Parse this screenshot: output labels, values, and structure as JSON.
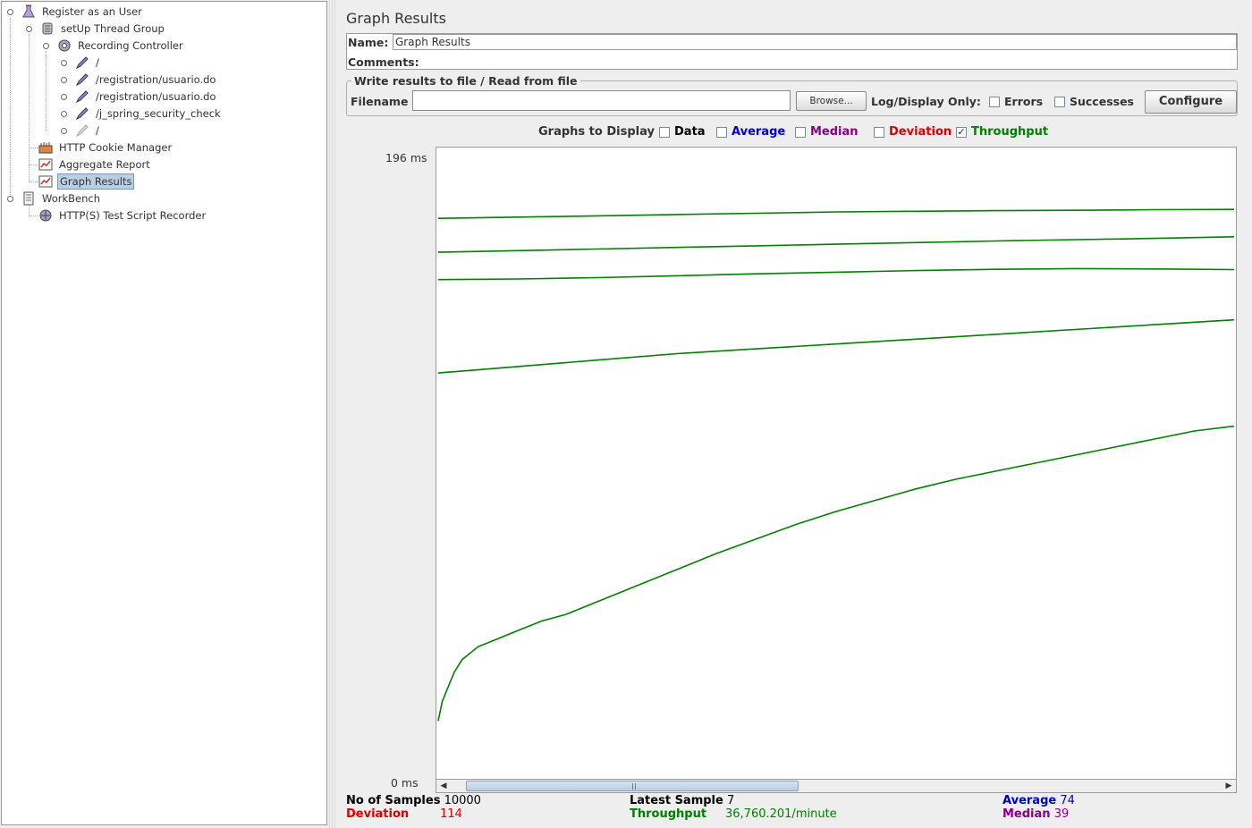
{
  "tree": {
    "nodes": [
      {
        "label": "Register as an User",
        "icon": "test-plan-icon"
      },
      {
        "label": "setUp Thread Group",
        "icon": "thread-group-icon"
      },
      {
        "label": "Recording Controller",
        "icon": "controller-icon"
      },
      {
        "label": "/",
        "icon": "sampler-icon"
      },
      {
        "label": "/registration/usuario.do",
        "icon": "sampler-icon"
      },
      {
        "label": "/registration/usuario.do",
        "icon": "sampler-icon"
      },
      {
        "label": "/j_spring_security_check",
        "icon": "sampler-icon"
      },
      {
        "label": "/",
        "icon": "sampler-disabled-icon"
      },
      {
        "label": "HTTP Cookie Manager",
        "icon": "cookie-manager-icon"
      },
      {
        "label": "Aggregate Report",
        "icon": "listener-icon"
      },
      {
        "label": "Graph Results",
        "icon": "listener-icon"
      },
      {
        "label": "WorkBench",
        "icon": "workbench-icon"
      },
      {
        "label": "HTTP(S) Test Script Recorder",
        "icon": "recorder-icon"
      }
    ],
    "selected": "Graph Results"
  },
  "panel": {
    "title": "Graph Results",
    "name_label": "Name:",
    "name_value": "Graph Results",
    "comments_label": "Comments:",
    "comments_value": "",
    "file_group_title": "Write results to file / Read from file",
    "filename_label": "Filename",
    "filename_value": "",
    "browse_label": "Browse...",
    "log_display_label": "Log/Display Only:",
    "errors_label": "Errors",
    "successes_label": "Successes",
    "configure_label": "Configure"
  },
  "graphs_to_display": {
    "label": "Graphs to Display",
    "options": [
      {
        "label": "Data",
        "checked": false,
        "color": "#000000"
      },
      {
        "label": "Average",
        "checked": false,
        "color": "#0000cc"
      },
      {
        "label": "Median",
        "checked": false,
        "color": "#8b008b"
      },
      {
        "label": "Deviation",
        "checked": false,
        "color": "#dd0000"
      },
      {
        "label": "Throughput",
        "checked": true,
        "color": "#008000"
      }
    ]
  },
  "chart_data": {
    "type": "line",
    "title": "",
    "xlabel": "",
    "ylabel": "",
    "y_max_label": "196 ms",
    "y_min_label": "0 ms",
    "ylim": [
      0,
      196
    ],
    "grid": false,
    "legend": "none",
    "series_color": "#008000",
    "series": [
      {
        "x": [
          0,
          0.1,
          0.2,
          0.3,
          0.4,
          0.5,
          0.6,
          0.7,
          0.8,
          0.9,
          1.0
        ],
        "values": [
          174,
          174.4,
          174.8,
          175.2,
          175.6,
          176,
          176.2,
          176.4,
          176.5,
          176.7,
          176.8
        ]
      },
      {
        "x": [
          0,
          0.1,
          0.2,
          0.3,
          0.4,
          0.5,
          0.6,
          0.7,
          0.8,
          0.9,
          1.0
        ],
        "values": [
          163.5,
          164,
          164.5,
          165,
          165.5,
          166,
          166.5,
          167,
          167.4,
          167.8,
          168.3
        ]
      },
      {
        "x": [
          0,
          0.1,
          0.2,
          0.3,
          0.4,
          0.5,
          0.6,
          0.7,
          0.8,
          0.9,
          1.0
        ],
        "values": [
          155,
          155.2,
          155.6,
          156.2,
          156.8,
          157.3,
          157.8,
          158.2,
          158.4,
          158.3,
          158.1
        ]
      },
      {
        "x": [
          0,
          0.1,
          0.2,
          0.3,
          0.4,
          0.5,
          0.6,
          0.7,
          0.8,
          0.9,
          1.0
        ],
        "values": [
          126,
          128,
          130,
          132,
          133.5,
          135,
          136.5,
          138,
          139.5,
          141,
          142.5
        ]
      },
      {
        "x": [
          0,
          0.005,
          0.01,
          0.02,
          0.03,
          0.05,
          0.07,
          0.1,
          0.13,
          0.16,
          0.2,
          0.25,
          0.3,
          0.35,
          0.4,
          0.45,
          0.5,
          0.55,
          0.6,
          0.65,
          0.7,
          0.75,
          0.8,
          0.85,
          0.9,
          0.95,
          1.0
        ],
        "values": [
          18,
          24,
          27,
          33,
          37,
          41,
          43,
          46,
          49,
          51,
          55,
          60,
          65,
          70,
          74.5,
          79,
          83,
          86.5,
          90,
          93,
          95.5,
          98,
          100.5,
          103,
          105.5,
          108,
          109.5
        ]
      }
    ]
  },
  "stats": {
    "samples_label": "No of Samples",
    "samples_value": "10000",
    "latest_label": "Latest Sample",
    "latest_value": "7",
    "average_label": "Average",
    "average_value": "74",
    "deviation_label": "Deviation",
    "deviation_value": "114",
    "throughput_label": "Throughput",
    "throughput_value": "36,760.201/minute",
    "median_label": "Median",
    "median_value": "39"
  },
  "scrollbar": {
    "thumb_start": 0.02,
    "thumb_end": 0.45
  }
}
